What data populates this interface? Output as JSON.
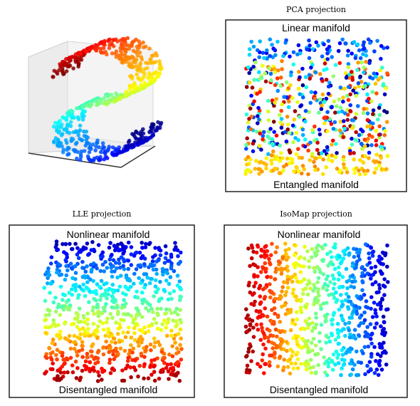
{
  "panels": [
    {
      "title": "PCA projection",
      "top_note": "Linear manifold",
      "bottom_note": "Entangled manifold"
    },
    {
      "title": "LLE projection",
      "top_note": "Nonlinear manifold",
      "bottom_note": "Disentangled manifold"
    },
    {
      "title": "IsoMap projection",
      "top_note": "Nonlinear manifold",
      "bottom_note": "Disentangled manifold"
    }
  ]
}
